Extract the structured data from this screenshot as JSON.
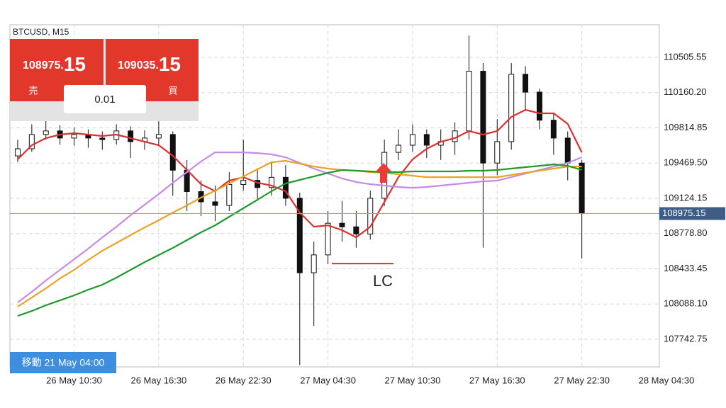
{
  "chart_data": {
    "type": "candlestick",
    "title": "BTCUSD, M15",
    "open": [
      109540,
      109610,
      109750,
      109785,
      109715,
      109750,
      109715,
      109700,
      109785,
      109680,
      109715,
      109750,
      109400,
      109190,
      109090,
      109055,
      109260,
      109300,
      109230,
      109330,
      109125,
      108395,
      108570,
      108880,
      108845,
      108775,
      109125,
      109575,
      109645,
      109750,
      109645,
      109680,
      109785,
      110370,
      109470,
      109680,
      110340,
      110165,
      109890,
      109715,
      109470
    ],
    "high": [
      109700,
      109850,
      109900,
      109840,
      109820,
      109800,
      109780,
      109850,
      109830,
      109790,
      109880,
      109780,
      109500,
      109300,
      109250,
      109380,
      109700,
      109420,
      109480,
      109450,
      109180,
      108700,
      109000,
      109100,
      109000,
      109200,
      109700,
      109800,
      109850,
      109800,
      109800,
      109870,
      110720,
      110450,
      109900,
      110450,
      110420,
      110200,
      109950,
      109780,
      109500
    ],
    "low": [
      109480,
      109580,
      109700,
      109650,
      109640,
      109620,
      109600,
      109650,
      109520,
      109600,
      109650,
      109150,
      109000,
      108950,
      108900,
      109000,
      109200,
      109100,
      109150,
      109050,
      107490,
      107875,
      108480,
      108700,
      108640,
      108720,
      109050,
      109500,
      109580,
      109520,
      109500,
      109550,
      109700,
      108640,
      109350,
      109600,
      109980,
      109800,
      109550,
      109300,
      108535
    ],
    "close": [
      109610,
      109750,
      109785,
      109715,
      109750,
      109715,
      109700,
      109785,
      109680,
      109715,
      109750,
      109400,
      109190,
      109090,
      109055,
      109260,
      109300,
      109230,
      109330,
      109125,
      108395,
      108570,
      108880,
      108845,
      108775,
      109125,
      109575,
      109645,
      109750,
      109645,
      109680,
      109785,
      110370,
      109470,
      109680,
      110340,
      110165,
      109890,
      109715,
      109470,
      108975.15
    ],
    "up_color": "#ffffff",
    "down_color": "#111111",
    "series": [
      {
        "color": "#d93030",
        "values": [
          109506,
          109645,
          109714,
          109749,
          109763,
          109749,
          109735,
          109749,
          109714,
          109679,
          109645,
          109541,
          109402,
          109263,
          109194,
          109298,
          109332,
          109277,
          109249,
          109194,
          108985,
          108846,
          108860,
          108812,
          108742,
          108846,
          109089,
          109332,
          109506,
          109610,
          109679,
          109714,
          109784,
          109749,
          109784,
          109922,
          109992,
          109957,
          109957,
          109853,
          109575
        ]
      },
      {
        "color": "#c58be6",
        "values": [
          108104,
          108208,
          108319,
          108423,
          108527,
          108631,
          108742,
          108846,
          108958,
          109062,
          109166,
          109277,
          109381,
          109485,
          109575,
          109575,
          109575,
          109568,
          109555,
          109527,
          109471,
          109416,
          109367,
          109319,
          109284,
          109263,
          109249,
          109235,
          109228,
          109235,
          109249,
          109263,
          109277,
          109291,
          109298,
          109332,
          109367,
          109402,
          109436,
          109471,
          109527
        ]
      },
      {
        "color": "#e9a325",
        "values": [
          108062,
          108152,
          108242,
          108340,
          108423,
          108520,
          108610,
          108687,
          108763,
          108839,
          108909,
          108985,
          109055,
          109131,
          109200,
          109270,
          109339,
          109409,
          109478,
          109492,
          109464,
          109436,
          109416,
          109402,
          109395,
          109381,
          109374,
          109360,
          109346,
          109332,
          109332,
          109332,
          109332,
          109332,
          109332,
          109353,
          109374,
          109395,
          109416,
          109436,
          109436
        ]
      },
      {
        "color": "#1f9a2c",
        "values": [
          107972,
          108020,
          108076,
          108124,
          108173,
          108229,
          108277,
          108347,
          108423,
          108499,
          108569,
          108638,
          108715,
          108791,
          108860,
          108944,
          109027,
          109110,
          109194,
          109270,
          109305,
          109339,
          109374,
          109402,
          109395,
          109388,
          109381,
          109381,
          109388,
          109388,
          109388,
          109388,
          109395,
          109395,
          109402,
          109416,
          109430,
          109443,
          109457,
          109443,
          109402
        ]
      }
    ],
    "ylim": [
      107479,
      110825
    ],
    "yticks": [
      107742.75,
      {
        "value": 108088.1,
        "label": "108088.10"
      },
      108433.45,
      {
        "value": 108778.8,
        "label": "108778.80"
      },
      109124.15,
      {
        "value": 109469.5,
        "label": "109469.50"
      },
      109814.85,
      {
        "value": 110160.2,
        "label": "110160.20"
      },
      110505.55
    ],
    "xlim": [
      -0.5,
      46
    ],
    "xticks": [
      {
        "value": 4,
        "label": "26 May 10:30"
      },
      {
        "value": 10,
        "label": "26 May 16:30"
      },
      {
        "value": 16,
        "label": "26 May 22:30"
      },
      {
        "value": 22,
        "label": "27 May 04:30"
      },
      {
        "value": 28,
        "label": "27 May 10:30"
      },
      {
        "value": 34,
        "label": "27 May 16:30"
      },
      {
        "value": 40,
        "label": "27 May 22:30"
      },
      {
        "value": 46,
        "label": "28 May 04:30"
      }
    ],
    "grid": true,
    "annotations": [
      {
        "text": "LC",
        "value": 108485,
        "color": "#e0302a"
      }
    ],
    "last_price_color": "#3d5d86"
  },
  "trade_panel": {
    "sell_label": "売",
    "sell_price": {
      "main": "108975.",
      "big": "15"
    },
    "buy_label": "買",
    "buy_price": {
      "main": "109035.",
      "big": "15"
    },
    "volume": "0.01"
  },
  "status": "移動 21 May 04:00"
}
